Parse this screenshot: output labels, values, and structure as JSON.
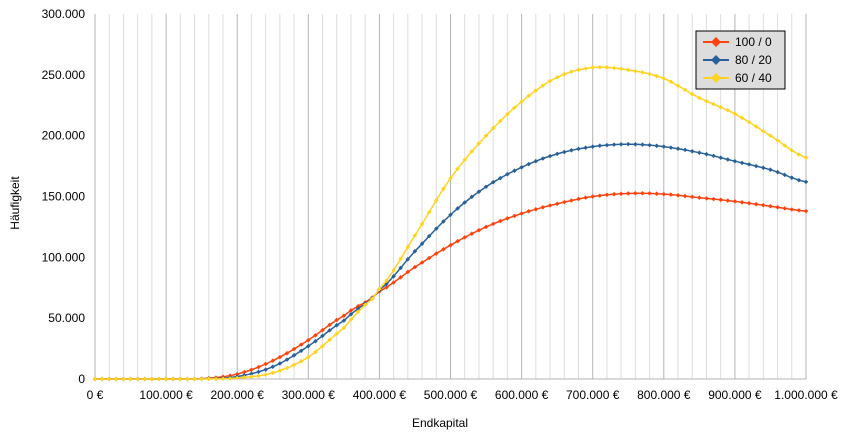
{
  "chart_data": {
    "type": "line",
    "xlabel": "Endkapital",
    "ylabel": "Häufigkeit",
    "xlim": [
      0,
      1000000
    ],
    "ylim": [
      0,
      300000
    ],
    "x_tick_labels": [
      "0 €",
      "100.000 €",
      "200.000 €",
      "300.000 €",
      "400.000 €",
      "500.000 €",
      "600.000 €",
      "700.000 €",
      "800.000 €",
      "900.000 €",
      "1.000.000 €"
    ],
    "y_tick_labels": [
      "0",
      "50.000",
      "100.000",
      "150.000",
      "200.000",
      "250.000",
      "300.000"
    ],
    "grid": "vertical",
    "legend_position": "top-right",
    "x": [
      0,
      50000,
      100000,
      150000,
      200000,
      250000,
      300000,
      350000,
      380000,
      400000,
      450000,
      500000,
      550000,
      600000,
      650000,
      700000,
      750000,
      800000,
      850000,
      900000,
      950000,
      1000000
    ],
    "series": [
      {
        "name": "100 / 0",
        "color": "#ff420e",
        "values": [
          0,
          0,
          0,
          300,
          4000,
          15000,
          32000,
          52000,
          63000,
          72000,
          92000,
          110000,
          125000,
          136000,
          144000,
          150000,
          152500,
          152000,
          149000,
          146000,
          142000,
          138000
        ]
      },
      {
        "name": "80 / 20",
        "color": "#2a6099",
        "values": [
          0,
          0,
          0,
          100,
          2000,
          10000,
          27000,
          48000,
          62000,
          73000,
          105000,
          135000,
          158000,
          174000,
          185000,
          191000,
          193000,
          191000,
          186000,
          179000,
          172000,
          162000
        ]
      },
      {
        "name": "60 / 40",
        "color": "#ffd320",
        "values": [
          0,
          0,
          0,
          0,
          800,
          5000,
          18000,
          42000,
          61000,
          74000,
          118000,
          165000,
          200000,
          228000,
          248000,
          256000,
          254000,
          247000,
          231000,
          218000,
          200000,
          182000
        ]
      }
    ]
  }
}
